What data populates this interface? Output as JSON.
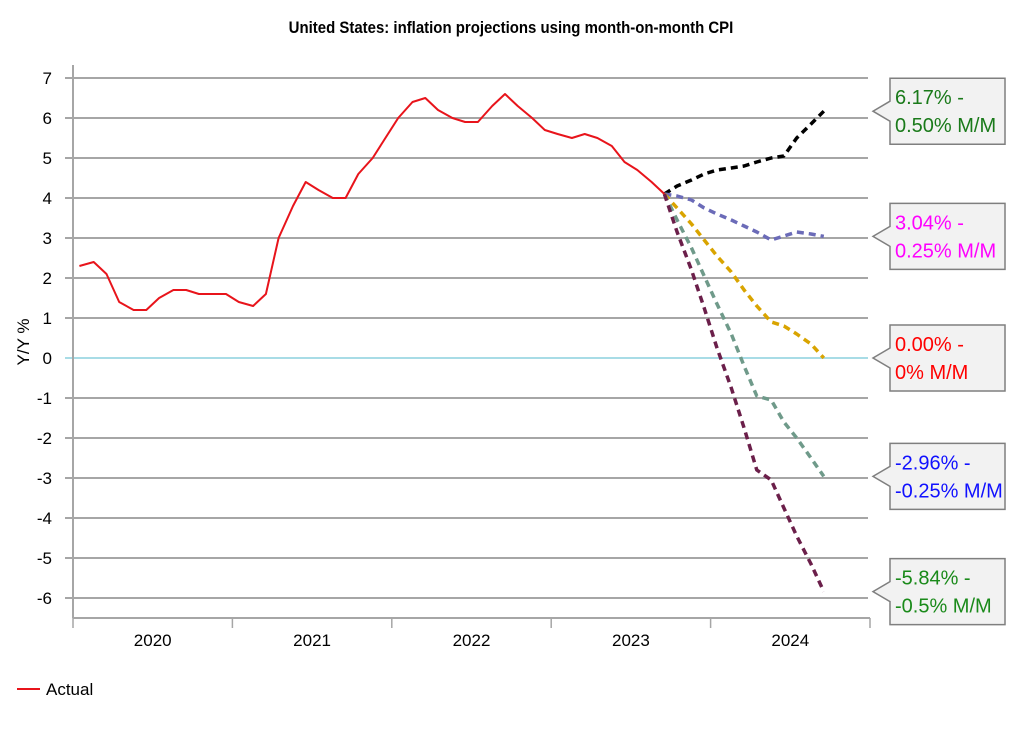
{
  "chart_data": {
    "type": "line",
    "title": "United States: inflation projections using month-on-month CPI",
    "xlabel": "",
    "ylabel": "Y/Y %",
    "ylim": [
      -6,
      7
    ],
    "yticks": [
      7,
      6,
      5,
      4,
      3,
      2,
      1,
      0,
      -1,
      -2,
      -3,
      -4,
      -5,
      -6
    ],
    "xlim": [
      2020.0,
      2025.0
    ],
    "xtick_labels": [
      "2020",
      "2021",
      "2022",
      "2023",
      "2024"
    ],
    "grid": true,
    "legend": {
      "position": "bottom-left",
      "entries": [
        {
          "name": "Actual",
          "color": "#e8141b"
        }
      ]
    },
    "series": [
      {
        "name": "Actual",
        "color": "#e8141b",
        "style": "solid",
        "x": [
          2020.04,
          2020.13,
          2020.21,
          2020.29,
          2020.38,
          2020.46,
          2020.54,
          2020.63,
          2020.71,
          2020.79,
          2020.88,
          2020.96,
          2021.04,
          2021.13,
          2021.21,
          2021.29,
          2021.38,
          2021.46,
          2021.54,
          2021.63,
          2021.71,
          2021.79,
          2021.88,
          2021.96,
          2022.04,
          2022.13,
          2022.21,
          2022.29,
          2022.38,
          2022.46,
          2022.54,
          2022.63,
          2022.71,
          2022.79,
          2022.88,
          2022.96,
          2023.04,
          2023.13,
          2023.21,
          2023.29,
          2023.38,
          2023.46,
          2023.54,
          2023.63,
          2023.71
        ],
        "values": [
          2.3,
          2.4,
          2.1,
          1.4,
          1.2,
          1.2,
          1.5,
          1.7,
          1.7,
          1.6,
          1.6,
          1.6,
          1.4,
          1.3,
          1.6,
          3.0,
          3.8,
          4.4,
          4.2,
          4.0,
          4.0,
          4.6,
          5.0,
          5.5,
          6.0,
          6.4,
          6.5,
          6.2,
          6.0,
          5.9,
          5.9,
          6.3,
          6.6,
          6.3,
          6.0,
          5.7,
          5.6,
          5.5,
          5.6,
          5.5,
          5.3,
          4.9,
          4.7,
          4.4,
          4.1
        ]
      },
      {
        "name": "0.50% M/M",
        "color": "#000000",
        "style": "dashed",
        "x": [
          2023.71,
          2023.79,
          2023.88,
          2023.96,
          2024.04,
          2024.13,
          2024.21,
          2024.29,
          2024.38,
          2024.46,
          2024.54,
          2024.63,
          2024.71
        ],
        "values": [
          4.1,
          4.3,
          4.45,
          4.6,
          4.7,
          4.75,
          4.8,
          4.9,
          5.0,
          5.05,
          5.5,
          5.85,
          6.17
        ]
      },
      {
        "name": "0.25% M/M",
        "color": "#6b6bb8",
        "style": "dashed",
        "x": [
          2023.71,
          2023.79,
          2023.88,
          2023.96,
          2024.04,
          2024.13,
          2024.21,
          2024.29,
          2024.38,
          2024.46,
          2024.54,
          2024.63,
          2024.71
        ],
        "values": [
          4.1,
          4.05,
          3.95,
          3.75,
          3.6,
          3.45,
          3.3,
          3.15,
          2.95,
          3.05,
          3.15,
          3.1,
          3.04
        ]
      },
      {
        "name": "0% M/M",
        "color": "#d9a400",
        "style": "dashed",
        "x": [
          2023.71,
          2023.79,
          2023.88,
          2023.96,
          2024.04,
          2024.13,
          2024.21,
          2024.29,
          2024.38,
          2024.46,
          2024.54,
          2024.63,
          2024.71
        ],
        "values": [
          4.1,
          3.75,
          3.35,
          2.95,
          2.55,
          2.15,
          1.7,
          1.3,
          0.9,
          0.8,
          0.6,
          0.35,
          0.0
        ]
      },
      {
        "name": "-0.25% M/M",
        "color": "#6f9a8a",
        "style": "dashed",
        "x": [
          2023.71,
          2023.79,
          2023.88,
          2023.96,
          2024.04,
          2024.13,
          2024.21,
          2024.29,
          2024.38,
          2024.46,
          2024.54,
          2024.63,
          2024.71
        ],
        "values": [
          4.1,
          3.45,
          2.75,
          2.05,
          1.35,
          0.6,
          -0.2,
          -0.95,
          -1.05,
          -1.6,
          -2.0,
          -2.5,
          -2.96
        ]
      },
      {
        "name": "-0.5% M/M",
        "color": "#6b1f4a",
        "style": "dashed",
        "x": [
          2023.71,
          2023.79,
          2023.88,
          2023.96,
          2024.04,
          2024.13,
          2024.21,
          2024.29,
          2024.38,
          2024.46,
          2024.54,
          2024.63,
          2024.71
        ],
        "values": [
          4.1,
          3.15,
          2.2,
          1.25,
          0.25,
          -0.75,
          -1.75,
          -2.8,
          -3.05,
          -3.75,
          -4.45,
          -5.15,
          -5.84
        ]
      }
    ],
    "annotations": [
      {
        "line1": "6.17% -",
        "line2": "0.50% M/M",
        "color": "#1a7a1a",
        "value": 6.17
      },
      {
        "line1": "3.04% -",
        "line2": "0.25% M/M",
        "color": "#ff00ff",
        "value": 3.04
      },
      {
        "line1": "0.00% -",
        "line2": "0% M/M",
        "color": "#ff0000",
        "value": 0.0
      },
      {
        "line1": "-2.96% -",
        "line2": "-0.25% M/M",
        "color": "#1010ff",
        "value": -2.96
      },
      {
        "line1": "-5.84% -",
        "line2": "-0.5% M/M",
        "color": "#1a8a1a",
        "value": -5.84
      }
    ]
  }
}
